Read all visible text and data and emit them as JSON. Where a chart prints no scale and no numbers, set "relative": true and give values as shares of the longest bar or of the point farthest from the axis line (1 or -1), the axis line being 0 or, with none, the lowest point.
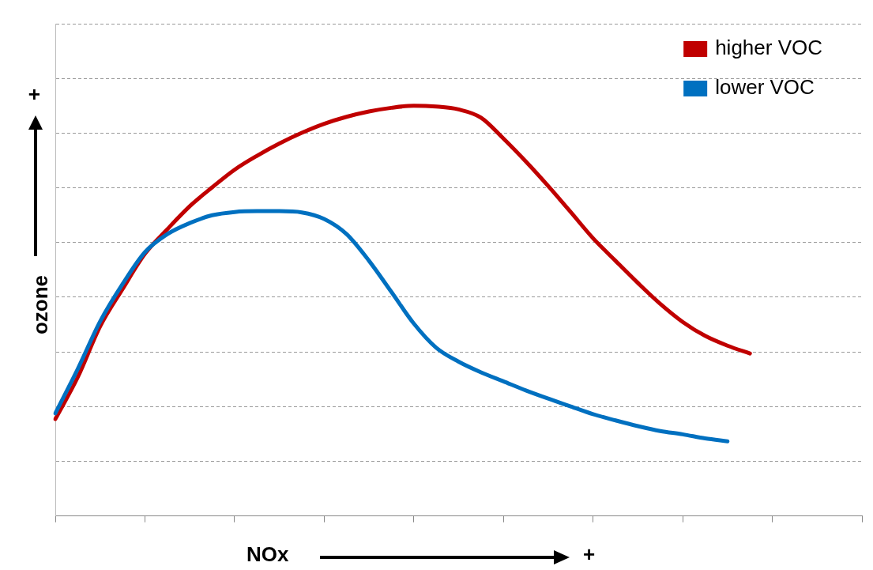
{
  "chart_data": {
    "type": "line",
    "relative": true,
    "xlabel": "NOx",
    "ylabel": "ozone",
    "annotations": [
      "+",
      "+"
    ],
    "categories": [
      null,
      null,
      null,
      null,
      null,
      null,
      null,
      null,
      null,
      null,
      null,
      null,
      null,
      null,
      null,
      null,
      null,
      null,
      null,
      null,
      null,
      null,
      null,
      null,
      null,
      null,
      null,
      null,
      null,
      null,
      null,
      null,
      null,
      null,
      null,
      null,
      null
    ],
    "series": [
      {
        "name": "higher VOC",
        "color": "#c00000",
        "values": [
          0.236,
          0.338,
          0.462,
          0.553,
          0.639,
          0.699,
          0.755,
          0.801,
          0.844,
          0.878,
          0.908,
          0.934,
          0.956,
          0.973,
          0.986,
          0.995,
          1,
          0.998,
          0.991,
          0.971,
          0.92,
          0.864,
          0.804,
          0.741,
          0.677,
          0.622,
          0.568,
          0.517,
          0.473,
          0.439,
          0.415,
          0.396,
          null,
          null,
          null,
          null,
          null
        ]
      },
      {
        "name": "lower VOC",
        "color": "#0070c0",
        "values": [
          0.25,
          0.358,
          0.474,
          0.565,
          0.643,
          0.687,
          0.714,
          0.733,
          0.741,
          0.743,
          0.743,
          0.74,
          0.724,
          0.687,
          0.622,
          0.546,
          0.469,
          0.41,
          0.376,
          0.35,
          0.328,
          0.306,
          0.286,
          0.267,
          0.248,
          0.233,
          0.219,
          0.207,
          0.199,
          0.189,
          0.182,
          null,
          null,
          null,
          null,
          null,
          null
        ]
      }
    ],
    "grid": "y",
    "legend": "top right",
    "marker": "none",
    "line_style": "solid"
  }
}
